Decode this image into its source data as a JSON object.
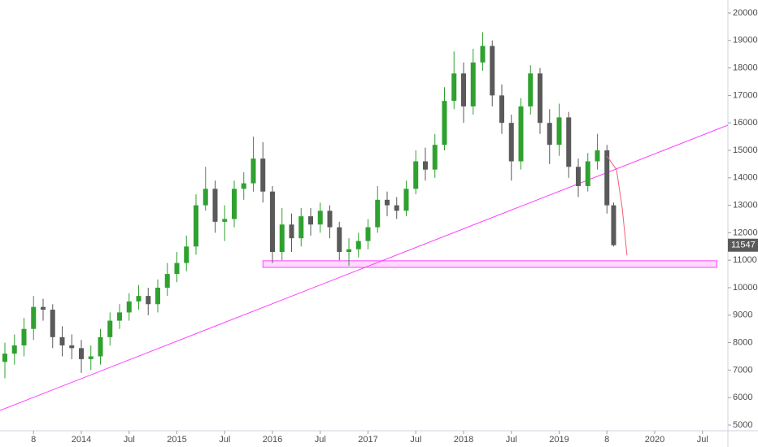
{
  "chart_data": {
    "type": "candlestick",
    "up_color": "#2fa12f",
    "down_color": "#5a5a5a",
    "x": [
      2013.2,
      2013.3,
      2013.4,
      2013.5,
      2013.6,
      2013.7,
      2013.8,
      2013.9,
      2014.0,
      2014.1,
      2014.2,
      2014.3,
      2014.4,
      2014.5,
      2014.6,
      2014.7,
      2014.8,
      2014.9,
      2015.0,
      2015.1,
      2015.2,
      2015.3,
      2015.4,
      2015.5,
      2015.6,
      2015.7,
      2015.8,
      2015.9,
      2016.0,
      2016.1,
      2016.2,
      2016.3,
      2016.4,
      2016.5,
      2016.6,
      2016.7,
      2016.8,
      2016.9,
      2017.0,
      2017.1,
      2017.2,
      2017.3,
      2017.4,
      2017.5,
      2017.6,
      2017.7,
      2017.8,
      2017.9,
      2018.0,
      2018.1,
      2018.2,
      2018.3,
      2018.4,
      2018.5,
      2018.6,
      2018.7,
      2018.8,
      2018.9,
      2019.0,
      2019.1,
      2019.2,
      2019.3,
      2019.4,
      2019.5,
      2019.57
    ],
    "open": [
      7300,
      7600,
      7900,
      8500,
      9300,
      9200,
      8200,
      7900,
      7800,
      7400,
      7500,
      8200,
      8800,
      9100,
      9500,
      9700,
      9400,
      10000,
      10500,
      10900,
      11500,
      13000,
      13600,
      12400,
      12500,
      13600,
      13800,
      14700,
      13500,
      11300,
      12300,
      11800,
      12600,
      12300,
      12800,
      12200,
      11300,
      11400,
      11700,
      12200,
      13200,
      13000,
      12800,
      13600,
      14600,
      14300,
      15200,
      16800,
      17800,
      16600,
      18200,
      18800,
      17000,
      16000,
      14600,
      16600,
      17800,
      16000,
      15200,
      16200,
      14400,
      13700,
      14600,
      15000,
      13000
    ],
    "high": [
      8000,
      8300,
      8900,
      9700,
      9600,
      9400,
      8600,
      8300,
      8100,
      7900,
      8500,
      9100,
      9400,
      9800,
      10100,
      10000,
      10300,
      10900,
      11300,
      11900,
      13400,
      14400,
      13900,
      13000,
      13900,
      14200,
      15500,
      15300,
      13700,
      12900,
      12700,
      12900,
      12900,
      13100,
      13000,
      12400,
      11800,
      12000,
      12500,
      13700,
      13500,
      13300,
      13900,
      15000,
      15100,
      15600,
      17300,
      18600,
      18200,
      18700,
      19300,
      19000,
      17400,
      16300,
      16900,
      18100,
      18000,
      16500,
      16700,
      16400,
      14700,
      14900,
      15600,
      15200,
      13100
    ],
    "low": [
      6700,
      7200,
      7500,
      8100,
      8800,
      7800,
      7500,
      7400,
      6900,
      7000,
      7200,
      7900,
      8500,
      8800,
      9200,
      9000,
      9100,
      9700,
      10200,
      10600,
      11200,
      12800,
      12000,
      11700,
      12200,
      13200,
      13500,
      13100,
      10900,
      11000,
      11300,
      11500,
      11900,
      12000,
      11800,
      11000,
      10800,
      11100,
      11400,
      12000,
      12600,
      12500,
      12600,
      13400,
      13900,
      14000,
      15000,
      16500,
      16000,
      16300,
      17900,
      16600,
      15600,
      13900,
      14300,
      16300,
      15600,
      14500,
      14800,
      14000,
      13300,
      13500,
      14300,
      12700,
      11500
    ],
    "close": [
      7600,
      7900,
      8500,
      9300,
      9200,
      8200,
      7900,
      7800,
      7400,
      7500,
      8200,
      8800,
      9100,
      9500,
      9700,
      9400,
      10000,
      10500,
      10900,
      11500,
      13000,
      13600,
      12400,
      12500,
      13600,
      13800,
      14700,
      13500,
      11300,
      12300,
      11800,
      12600,
      12300,
      12800,
      12200,
      11300,
      11400,
      11700,
      12200,
      13200,
      13000,
      12800,
      13600,
      14600,
      14300,
      15200,
      16800,
      17800,
      16600,
      18200,
      18800,
      17000,
      16000,
      14600,
      16600,
      17800,
      16000,
      15200,
      16200,
      14400,
      13700,
      14600,
      15000,
      13000,
      11547
    ],
    "xlim": [
      2013.149,
      2020.766
    ],
    "ylim": [
      4793,
      20473
    ],
    "xticks": [
      {
        "value": 2013.5,
        "label": "8"
      },
      2014,
      {
        "value": 2014.5,
        "label": "Jul"
      },
      2015,
      {
        "value": 2015.5,
        "label": "Jul"
      },
      2016,
      {
        "value": 2016.5,
        "label": "Jul"
      },
      2017,
      {
        "value": 2017.5,
        "label": "Jul"
      },
      2018,
      {
        "value": 2018.5,
        "label": "Jul"
      },
      2019,
      {
        "value": 2019.5,
        "label": "8"
      },
      2020,
      {
        "value": 2020.5,
        "label": "Jul"
      }
    ],
    "yticks": [
      5000,
      6000,
      7000,
      8000,
      9000,
      10000,
      11000,
      12000,
      13000,
      14000,
      15000,
      16000,
      17000,
      18000,
      19000,
      20000
    ],
    "trendline": {
      "color": "#ff40ff",
      "x": [
        2013.149,
        2020.766
      ],
      "y": [
        5530,
        15917
      ]
    },
    "support_zone": {
      "color": "#ff40ff",
      "x": [
        2015.9,
        2020.65
      ],
      "y": [
        10740,
        10980
      ]
    },
    "forecast": {
      "color": "#f06070",
      "x": [
        2019.5,
        2019.6,
        2019.66,
        2019.71
      ],
      "y": [
        14790,
        14300,
        12900,
        11180
      ]
    }
  }
}
